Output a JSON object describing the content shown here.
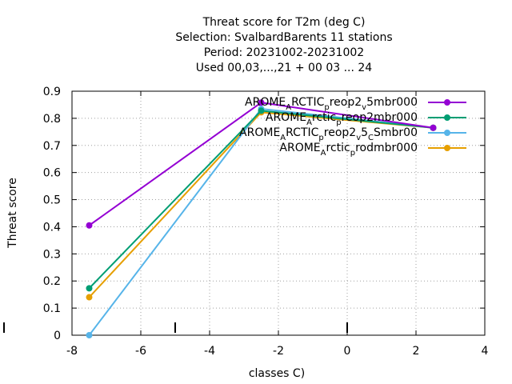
{
  "chart_data": {
    "type": "line",
    "title_lines": [
      "Threat score  for T2m (deg C)",
      "Selection: SvalbardBarents     11 stations",
      "Period: 20231002-20231002",
      "Used  00,03,...,21  + 00 03 ... 24"
    ],
    "xlabel": "classes C)",
    "ylabel": "Threat score",
    "xlim": [
      -8,
      4
    ],
    "ylim": [
      0,
      0.9
    ],
    "xticks": [
      -8,
      -6,
      -4,
      -2,
      0,
      2,
      4
    ],
    "yticks": [
      0,
      0.1,
      0.2,
      0.3,
      0.4,
      0.5,
      0.6,
      0.7,
      0.8,
      0.9
    ],
    "grid": true,
    "legend_position": "top-right",
    "marker_ticks_x": [
      -5,
      0
    ],
    "series": [
      {
        "name": "AROME_ARCTIC_preop2_v5mbr000",
        "legend_label": [
          [
            "AROME",
            ""
          ],
          [
            "A",
            "sub"
          ],
          [
            "RCTIC",
            ""
          ],
          [
            "p",
            "sub"
          ],
          [
            "reop2",
            ""
          ],
          [
            "v",
            "sub"
          ],
          [
            "5mbr000",
            ""
          ]
        ],
        "color": "#9400d3",
        "x": [
          -7.5,
          -2.5,
          2.5
        ],
        "y": [
          0.405,
          0.858,
          0.765
        ]
      },
      {
        "name": "AROME_Arctic_prep2mbr000",
        "legend_label": [
          [
            "AROME",
            ""
          ],
          [
            "A",
            "sub"
          ],
          [
            "rctic",
            ""
          ],
          [
            "p",
            "sub"
          ],
          [
            "reop2mbr000",
            ""
          ]
        ],
        "color": "#009e73",
        "x": [
          -7.5,
          -2.5,
          2.5
        ],
        "y": [
          0.173,
          0.828,
          0.765
        ]
      },
      {
        "name": "AROME_ARCTIC_preop2_v5_CSmbr00",
        "legend_label": [
          [
            "AROME",
            ""
          ],
          [
            "A",
            "sub"
          ],
          [
            "RCTIC",
            ""
          ],
          [
            "p",
            "sub"
          ],
          [
            "reop2",
            ""
          ],
          [
            "v",
            "sub"
          ],
          [
            "5",
            ""
          ],
          [
            "C",
            "sub"
          ],
          [
            "Smbr00",
            ""
          ]
        ],
        "color": "#56b4e9",
        "x": [
          -7.5,
          -2.5,
          2.5
        ],
        "y": [
          0.0,
          0.835,
          0.765
        ]
      },
      {
        "name": "AROME_Arctic_prodmbr000",
        "legend_label": [
          [
            "AROME",
            ""
          ],
          [
            "A",
            "sub"
          ],
          [
            "rctic",
            ""
          ],
          [
            "p",
            "sub"
          ],
          [
            "rodmbr000",
            ""
          ]
        ],
        "color": "#e69f00",
        "x": [
          -7.5,
          -2.5,
          2.5
        ],
        "y": [
          0.14,
          0.822,
          0.765
        ]
      }
    ]
  }
}
